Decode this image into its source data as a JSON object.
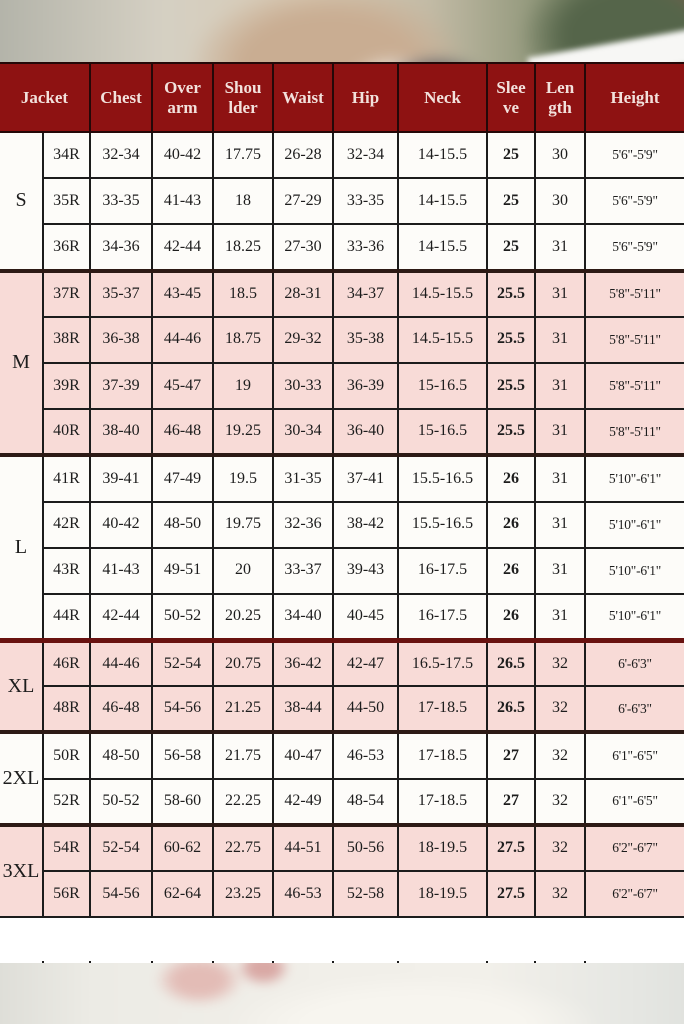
{
  "colors": {
    "header_bg": "#8e1212",
    "header_text": "#f2e1dc",
    "pink_row": "#f8dbd7",
    "white_row": "#fdfcf9",
    "divider_maroon": "#691210"
  },
  "table": {
    "columns": [
      "Jacket",
      "Chest",
      "Over arm",
      "Shou lder",
      "Waist",
      "Hip",
      "Neck",
      "Slee ve",
      "Len gth",
      "Height"
    ],
    "column_keys": [
      "jacket",
      "chest",
      "overarm",
      "shoulder",
      "waist",
      "hip",
      "neck",
      "sleeve",
      "length",
      "height"
    ],
    "groups": [
      {
        "label": "S",
        "shade": "white",
        "rows": [
          [
            "34R",
            "32-34",
            "40-42",
            "17.75",
            "26-28",
            "32-34",
            "14-15.5",
            "25",
            "30",
            "5'6\"-5'9\""
          ],
          [
            "35R",
            "33-35",
            "41-43",
            "18",
            "27-29",
            "33-35",
            "14-15.5",
            "25",
            "30",
            "5'6\"-5'9\""
          ],
          [
            "36R",
            "34-36",
            "42-44",
            "18.25",
            "27-30",
            "33-36",
            "14-15.5",
            "25",
            "31",
            "5'6\"-5'9\""
          ]
        ]
      },
      {
        "label": "M",
        "shade": "pink",
        "rows": [
          [
            "37R",
            "35-37",
            "43-45",
            "18.5",
            "28-31",
            "34-37",
            "14.5-15.5",
            "25.5",
            "31",
            "5'8\"-5'11\""
          ],
          [
            "38R",
            "36-38",
            "44-46",
            "18.75",
            "29-32",
            "35-38",
            "14.5-15.5",
            "25.5",
            "31",
            "5'8\"-5'11\""
          ],
          [
            "39R",
            "37-39",
            "45-47",
            "19",
            "30-33",
            "36-39",
            "15-16.5",
            "25.5",
            "31",
            "5'8\"-5'11\""
          ],
          [
            "40R",
            "38-40",
            "46-48",
            "19.25",
            "30-34",
            "36-40",
            "15-16.5",
            "25.5",
            "31",
            "5'8\"-5'11\""
          ]
        ]
      },
      {
        "label": "L",
        "shade": "white",
        "rows": [
          [
            "41R",
            "39-41",
            "47-49",
            "19.5",
            "31-35",
            "37-41",
            "15.5-16.5",
            "26",
            "31",
            "5'10\"-6'1\""
          ],
          [
            "42R",
            "40-42",
            "48-50",
            "19.75",
            "32-36",
            "38-42",
            "15.5-16.5",
            "26",
            "31",
            "5'10\"-6'1\""
          ],
          [
            "43R",
            "41-43",
            "49-51",
            "20",
            "33-37",
            "39-43",
            "16-17.5",
            "26",
            "31",
            "5'10\"-6'1\""
          ],
          [
            "44R",
            "42-44",
            "50-52",
            "20.25",
            "34-40",
            "40-45",
            "16-17.5",
            "26",
            "31",
            "5'10\"-6'1\""
          ]
        ]
      },
      {
        "label": "XL",
        "shade": "pink",
        "divider": "maroon",
        "rows": [
          [
            "46R",
            "44-46",
            "52-54",
            "20.75",
            "36-42",
            "42-47",
            "16.5-17.5",
            "26.5",
            "32",
            "6'-6'3\""
          ],
          [
            "48R",
            "46-48",
            "54-56",
            "21.25",
            "38-44",
            "44-50",
            "17-18.5",
            "26.5",
            "32",
            "6'-6'3\""
          ]
        ]
      },
      {
        "label": "2XL",
        "shade": "white",
        "rows": [
          [
            "50R",
            "48-50",
            "56-58",
            "21.75",
            "40-47",
            "46-53",
            "17-18.5",
            "27",
            "32",
            "6'1\"-6'5\""
          ],
          [
            "52R",
            "50-52",
            "58-60",
            "22.25",
            "42-49",
            "48-54",
            "17-18.5",
            "27",
            "32",
            "6'1\"-6'5\""
          ]
        ]
      },
      {
        "label": "3XL",
        "shade": "pink",
        "rows": [
          [
            "54R",
            "52-54",
            "60-62",
            "22.75",
            "44-51",
            "50-56",
            "18-19.5",
            "27.5",
            "32",
            "6'2\"-6'7\""
          ],
          [
            "56R",
            "54-56",
            "62-64",
            "23.25",
            "46-53",
            "52-58",
            "18-19.5",
            "27.5",
            "32",
            "6'2\"-6'7\""
          ]
        ]
      }
    ]
  }
}
